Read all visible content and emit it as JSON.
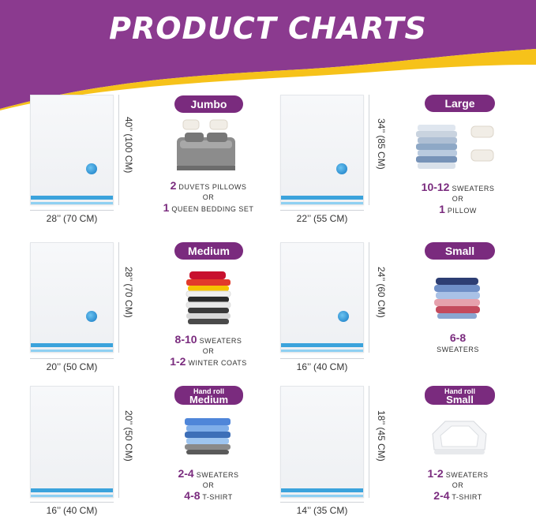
{
  "header": {
    "title": "PRODUCT CHARTS",
    "bg_color": "#8b3a8f",
    "wave_color": "#f6c21a"
  },
  "accent_color": "#7a2b7e",
  "valve_color": "#3ba3dc",
  "products": [
    {
      "label": "Jumbo",
      "width_label": "28’’ (70 CM)",
      "height_label": "40’’ (100 CM)",
      "image": "bed-icon",
      "lines": [
        {
          "num": "2",
          "text": "DUVETS PILLOWS"
        },
        {
          "num": "",
          "text": "OR"
        },
        {
          "num": "1",
          "text": "QUEEN BEDDING SET"
        }
      ]
    },
    {
      "label": "Large",
      "width_label": "22’’ (55 CM)",
      "height_label": "34’’ (85 CM)",
      "image": "clothes-and-pillows-icon",
      "lines": [
        {
          "num": "10-12",
          "text": "SWEATERS"
        },
        {
          "num": "",
          "text": "OR"
        },
        {
          "num": "1",
          "text": "PILLOW"
        }
      ]
    },
    {
      "label": "Medium",
      "width_label": "20’’ (50 CM)",
      "height_label": "28’’ (70 CM)",
      "image": "folded-sweaters-icon",
      "lines": [
        {
          "num": "8-10",
          "text": "SWEATERS"
        },
        {
          "num": "",
          "text": "OR"
        },
        {
          "num": "1-2",
          "text": "WINTER COATS"
        }
      ]
    },
    {
      "label": "Small",
      "width_label": "16’’ (40 CM)",
      "height_label": "24’’ (60 CM)",
      "image": "folded-shirts-icon",
      "lines": [
        {
          "num": "6-8",
          "text": ""
        },
        {
          "num": "",
          "text": "SWEATERS"
        }
      ]
    },
    {
      "label_top": "Hand roll",
      "label": "Medium",
      "width_label": "16’’ (40 CM)",
      "height_label": "20’’ (50 CM)",
      "image": "folded-shirts-icon",
      "lines": [
        {
          "num": "2-4",
          "text": "SWEATERS"
        },
        {
          "num": "",
          "text": "OR"
        },
        {
          "num": "4-8",
          "text": "T-SHIRT"
        }
      ]
    },
    {
      "label_top": "Hand roll",
      "label": "Small",
      "width_label": "14’’ (35 CM)",
      "height_label": "18’’ (45 CM)",
      "image": "white-shirts-icon",
      "lines": [
        {
          "num": "1-2",
          "text": "SWEATERS"
        },
        {
          "num": "",
          "text": "OR"
        },
        {
          "num": "2-4",
          "text": "T-SHIRT"
        }
      ]
    }
  ]
}
